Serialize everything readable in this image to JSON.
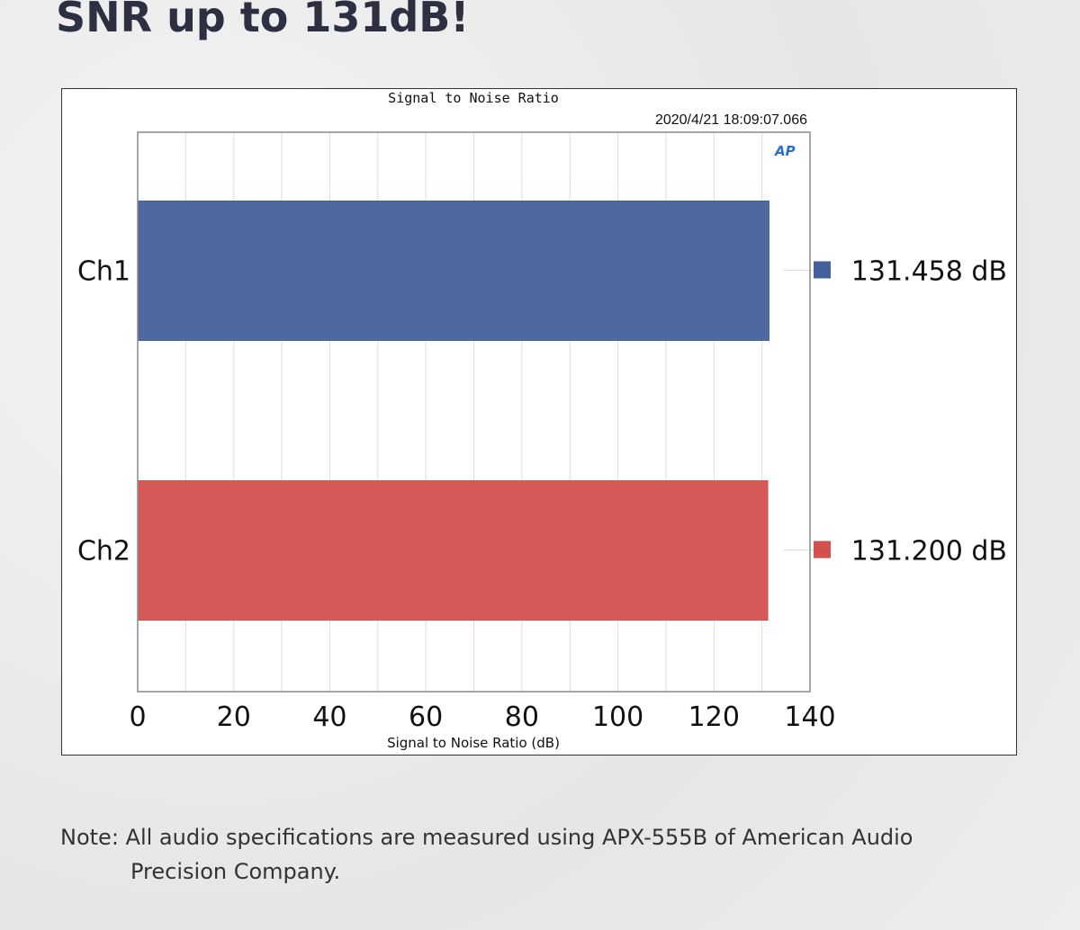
{
  "headline": "SNR up to 131dB!",
  "note": {
    "line1": "Note: All audio specifications are measured using APX-555B of American  Audio",
    "line2": "Precision Company."
  },
  "chart_data": {
    "type": "bar",
    "orientation": "horizontal",
    "title": "Signal to Noise Ratio",
    "timestamp": "2020/4/21 18:09:07.066",
    "logo": "AP",
    "xlabel": "Signal to Noise Ratio (dB)",
    "xlim": [
      0,
      140
    ],
    "xticks": [
      0,
      20,
      40,
      60,
      80,
      100,
      120,
      140
    ],
    "grid": true,
    "categories": [
      "Ch1",
      "Ch2"
    ],
    "values": [
      131.458,
      131.2
    ],
    "value_labels": [
      "131.458  dB",
      "131.200  dB"
    ],
    "colors": [
      "#44609b",
      "#d2504e"
    ],
    "legend_placement": "right"
  }
}
